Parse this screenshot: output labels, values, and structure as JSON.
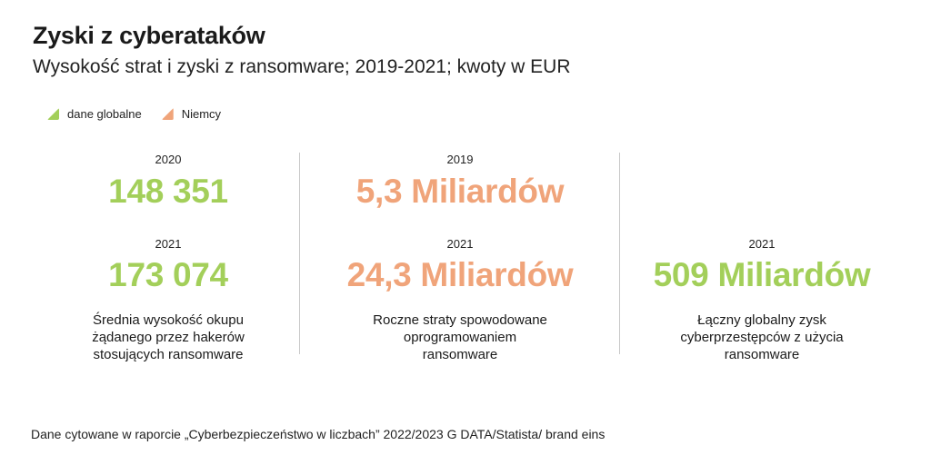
{
  "header": {
    "title": "Zyski z cyberataków",
    "subtitle": "Wysokość strat i zyski z ransomware; 2019-2021; kwoty w EUR"
  },
  "legend": {
    "items": [
      {
        "label": "dane globalne",
        "color": "#a3cf5a"
      },
      {
        "label": "Niemcy",
        "color": "#f0a47a"
      }
    ]
  },
  "columns": [
    {
      "stats": [
        {
          "year": "2020",
          "value": "148 351",
          "color": "#a3cf5a"
        },
        {
          "year": "2021",
          "value": "173 074",
          "color": "#a3cf5a"
        }
      ],
      "description": [
        "Średnia wysokość okupu",
        "żądanego przez hakerów",
        "stosujących ransomware"
      ]
    },
    {
      "stats": [
        {
          "year": "2019",
          "value": "5,3 Miliardów",
          "color": "#f0a47a"
        },
        {
          "year": "2021",
          "value": "24,3 Miliardów",
          "color": "#f0a47a"
        }
      ],
      "description": [
        "Roczne straty spowodowane",
        "oprogramowaniem",
        "ransomware"
      ]
    },
    {
      "stats": [
        {
          "year": "2021",
          "value": "509 Miliardów",
          "color": "#a3cf5a"
        }
      ],
      "description": [
        "Łączny globalny zysk",
        "cyberprzestępców z użycia",
        "ransomware"
      ]
    }
  ],
  "footer": {
    "source": "Dane cytowane w raporcie „Cyberbezpieczeństwo w liczbach” 2022/2023 G DATA/Statista/ brand eins"
  }
}
